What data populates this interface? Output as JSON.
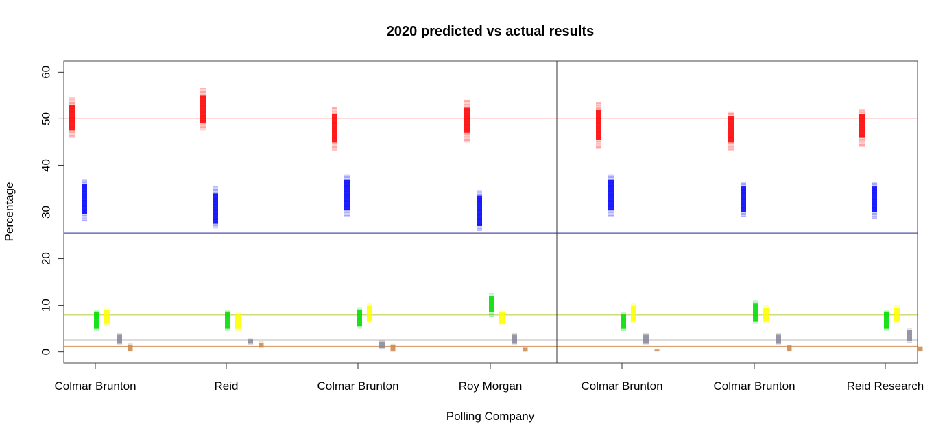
{
  "chart_data": {
    "type": "scatter",
    "title": "2020 predicted vs actual results",
    "xlabel": "Polling Company",
    "ylabel": "Percentage",
    "ylim": [
      -2.4,
      62.4
    ],
    "yticks": [
      0,
      10,
      20,
      30,
      40,
      50,
      60
    ],
    "categories": [
      "Colmar Brunton",
      "Reid",
      "Colmar Brunton",
      "Roy Morgan",
      "Colmar Brunton",
      "Colmar Brunton",
      "Reid Research"
    ],
    "divider_after_category": 4,
    "grid": false,
    "series": [
      {
        "color": "#ff0000",
        "actual": 50.0,
        "lows": [
          46,
          47.5,
          43,
          45,
          43.5,
          43,
          44
        ],
        "highs": [
          54.5,
          56.5,
          52.5,
          54,
          53.5,
          51.5,
          52
        ],
        "cores": [
          47.5,
          49,
          45,
          47,
          45.5,
          45,
          46
        ],
        "coreh": [
          53,
          55,
          51,
          52.5,
          52,
          50.5,
          51
        ]
      },
      {
        "color": "#0000ff",
        "actual": 25.5,
        "lows": [
          28,
          26.5,
          29,
          26,
          29,
          29,
          28.5
        ],
        "highs": [
          37,
          35.5,
          38,
          34.5,
          38,
          36.5,
          36.5
        ],
        "cores": [
          29.5,
          27.5,
          30.5,
          27,
          30.5,
          30,
          30
        ],
        "coreh": [
          36,
          34,
          37,
          33.5,
          37,
          35.5,
          35.5
        ]
      },
      {
        "color": "#00dd00",
        "actual": 7.9,
        "lows": [
          4.5,
          4.5,
          5,
          7.5,
          4.5,
          6,
          4.5
        ],
        "highs": [
          9,
          9,
          9.5,
          12.5,
          8.5,
          11,
          9
        ],
        "cores": [
          5,
          5,
          5.5,
          8.5,
          5,
          6.5,
          5
        ],
        "coreh": [
          8.5,
          8.5,
          9,
          12,
          8,
          10.5,
          8.5
        ]
      },
      {
        "color": "#ffff00",
        "actual": 7.9,
        "lows": [
          5.5,
          4.5,
          6,
          5.5,
          6,
          6,
          6
        ],
        "highs": [
          9.5,
          8.5,
          10.5,
          9,
          10.5,
          10,
          10
        ],
        "cores": [
          6,
          5,
          6.5,
          6,
          6.5,
          6.5,
          6.5
        ],
        "coreh": [
          9,
          8,
          10,
          8.5,
          10,
          9.5,
          9.5
        ]
      },
      {
        "color": "#888899",
        "actual": 2.6,
        "lows": [
          1.5,
          1.5,
          0.5,
          1.5,
          1.5,
          1.5,
          2
        ],
        "highs": [
          4,
          3,
          2.5,
          4,
          4,
          4,
          5
        ],
        "cores": [
          1.8,
          1.8,
          0.8,
          1.8,
          1.8,
          1.8,
          2.3
        ],
        "coreh": [
          3.7,
          2.7,
          2.2,
          3.7,
          3.7,
          3.7,
          4.7
        ]
      },
      {
        "color": "#cd8b50",
        "actual": 1.2,
        "lows": [
          0,
          0.8,
          0,
          0,
          0,
          0,
          0
        ],
        "highs": [
          1.8,
          2.2,
          1.7,
          1.0,
          0.6,
          1.5,
          1.2
        ],
        "cores": [
          0.2,
          1.0,
          0.2,
          0.1,
          0.1,
          0.1,
          0.1
        ],
        "coreh": [
          1.6,
          2.0,
          1.5,
          0.9,
          0.5,
          1.4,
          1.1
        ]
      }
    ]
  }
}
